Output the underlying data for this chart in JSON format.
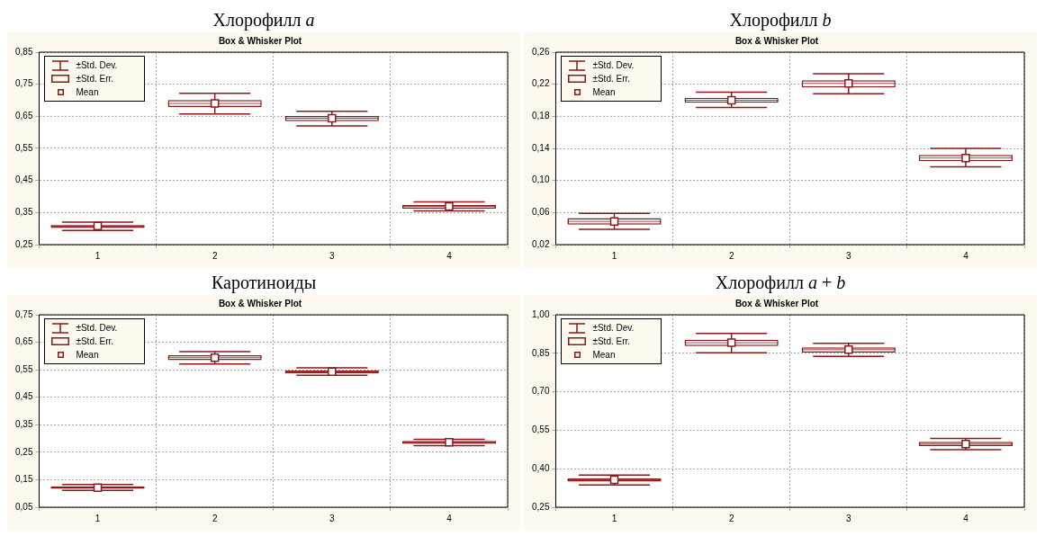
{
  "chart_data": [
    {
      "type": "box",
      "title": "Хлорофилл a",
      "subtitle": "Box & Whisker Plot",
      "categories": [
        "1",
        "2",
        "3",
        "4"
      ],
      "color": "#8b1a1a",
      "boxes": [
        {
          "low": 0.294,
          "q1": 0.302,
          "median": 0.308,
          "q3": 0.311,
          "high": 0.32,
          "mean": 0.308
        },
        {
          "low": 0.657,
          "q1": 0.679,
          "median": 0.69,
          "q3": 0.701,
          "high": 0.722,
          "mean": 0.69
        },
        {
          "low": 0.62,
          "q1": 0.635,
          "median": 0.644,
          "q3": 0.651,
          "high": 0.666,
          "mean": 0.644
        },
        {
          "low": 0.355,
          "q1": 0.362,
          "median": 0.369,
          "q3": 0.374,
          "high": 0.383,
          "mean": 0.369
        }
      ],
      "ylim": [
        0.25,
        0.85
      ],
      "yticks": [
        {
          "value": 0.25,
          "label": "0,25"
        },
        {
          "value": 0.35,
          "label": "0,35"
        },
        {
          "value": 0.45,
          "label": "0,45"
        },
        {
          "value": 0.55,
          "label": "0,55"
        },
        {
          "value": 0.65,
          "label": "0,65"
        },
        {
          "value": 0.75,
          "label": "0,75"
        },
        {
          "value": 0.85,
          "label": "0,85"
        }
      ],
      "grid": true,
      "annotations": [
        "±Std. Dev.",
        "±Std. Err.",
        "Mean"
      ]
    },
    {
      "type": "box",
      "title": "Хлорофилл b",
      "subtitle": "Box & Whisker Plot",
      "categories": [
        "1",
        "2",
        "3",
        "4"
      ],
      "color": "#8b1a1a",
      "boxes": [
        {
          "low": 0.039,
          "q1": 0.045,
          "median": 0.049,
          "q3": 0.053,
          "high": 0.059,
          "mean": 0.049
        },
        {
          "low": 0.191,
          "q1": 0.197,
          "median": 0.2,
          "q3": 0.203,
          "high": 0.21,
          "mean": 0.2
        },
        {
          "low": 0.208,
          "q1": 0.216,
          "median": 0.221,
          "q3": 0.225,
          "high": 0.233,
          "mean": 0.221
        },
        {
          "low": 0.117,
          "q1": 0.124,
          "median": 0.128,
          "q3": 0.132,
          "high": 0.14,
          "mean": 0.128
        }
      ],
      "ylim": [
        0.02,
        0.26
      ],
      "yticks": [
        {
          "value": 0.02,
          "label": "0,02"
        },
        {
          "value": 0.06,
          "label": "0,06"
        },
        {
          "value": 0.1,
          "label": "0,10"
        },
        {
          "value": 0.14,
          "label": "0,14"
        },
        {
          "value": 0.18,
          "label": "0,18"
        },
        {
          "value": 0.22,
          "label": "0,22"
        },
        {
          "value": 0.26,
          "label": "0,26"
        }
      ],
      "grid": true,
      "annotations": [
        "±Std. Dev.",
        "±Std. Err.",
        "Mean"
      ]
    },
    {
      "type": "box",
      "title": "Каротиноиды",
      "subtitle": "Box & Whisker Plot",
      "categories": [
        "1",
        "2",
        "3",
        "4"
      ],
      "color": "#8b1a1a",
      "boxes": [
        {
          "low": 0.111,
          "q1": 0.117,
          "median": 0.121,
          "q3": 0.126,
          "high": 0.133,
          "mean": 0.121
        },
        {
          "low": 0.571,
          "q1": 0.585,
          "median": 0.594,
          "q3": 0.603,
          "high": 0.616,
          "mean": 0.594
        },
        {
          "low": 0.53,
          "q1": 0.537,
          "median": 0.543,
          "q3": 0.548,
          "high": 0.557,
          "mean": 0.543
        },
        {
          "low": 0.274,
          "q1": 0.281,
          "median": 0.286,
          "q3": 0.291,
          "high": 0.297,
          "mean": 0.286
        }
      ],
      "ylim": [
        0.05,
        0.75
      ],
      "yticks": [
        {
          "value": 0.05,
          "label": "0,05"
        },
        {
          "value": 0.15,
          "label": "0,15"
        },
        {
          "value": 0.25,
          "label": "0,25"
        },
        {
          "value": 0.35,
          "label": "0,35"
        },
        {
          "value": 0.45,
          "label": "0,45"
        },
        {
          "value": 0.55,
          "label": "0,55"
        },
        {
          "value": 0.65,
          "label": "0,65"
        },
        {
          "value": 0.75,
          "label": "0,75"
        }
      ],
      "grid": true,
      "annotations": [
        "±Std. Dev.",
        "±Std. Err.",
        "Mean"
      ]
    },
    {
      "type": "box",
      "title": "Хлорофилл a + b",
      "subtitle": "Box & Whisker Plot",
      "categories": [
        "1",
        "2",
        "3",
        "4"
      ],
      "color": "#8b1a1a",
      "boxes": [
        {
          "low": 0.337,
          "q1": 0.35,
          "median": 0.357,
          "q3": 0.362,
          "high": 0.375,
          "mean": 0.357
        },
        {
          "low": 0.852,
          "q1": 0.878,
          "median": 0.891,
          "q3": 0.903,
          "high": 0.927,
          "mean": 0.891
        },
        {
          "low": 0.838,
          "q1": 0.853,
          "median": 0.864,
          "q3": 0.873,
          "high": 0.889,
          "mean": 0.864
        },
        {
          "low": 0.474,
          "q1": 0.488,
          "median": 0.496,
          "q3": 0.505,
          "high": 0.518,
          "mean": 0.496
        }
      ],
      "ylim": [
        0.25,
        1.0
      ],
      "yticks": [
        {
          "value": 0.25,
          "label": "0,25"
        },
        {
          "value": 0.4,
          "label": "0,40"
        },
        {
          "value": 0.55,
          "label": "0,55"
        },
        {
          "value": 0.7,
          "label": "0,70"
        },
        {
          "value": 0.85,
          "label": "0,85"
        },
        {
          "value": 1.0,
          "label": "1,00"
        }
      ],
      "grid": true,
      "annotations": [
        "±Std. Dev.",
        "±Std. Err.",
        "Mean"
      ]
    }
  ]
}
